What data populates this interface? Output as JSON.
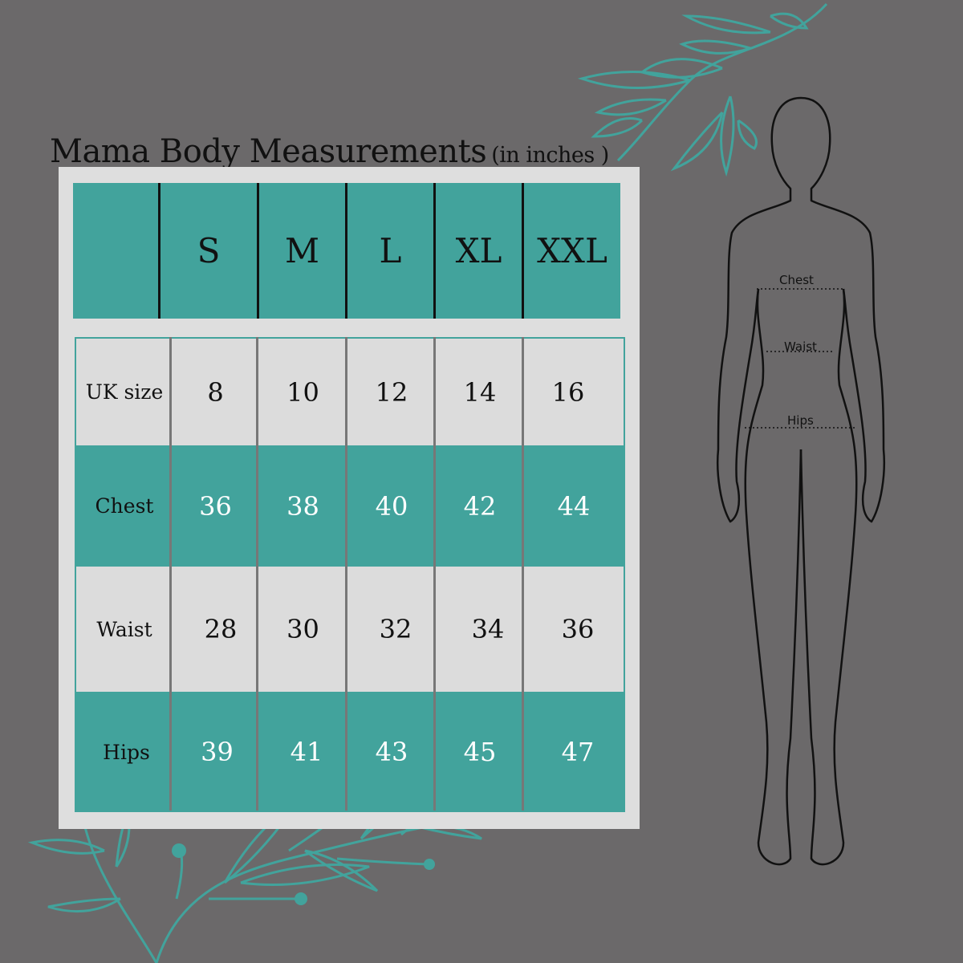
{
  "title": "Mama Body Measurements",
  "subtitle": "(in inches )",
  "sizes": [
    "S",
    "M",
    "L",
    "XL",
    "XXL"
  ],
  "rows": [
    {
      "label": "UK size",
      "values": [
        "8",
        "10",
        "12",
        "14",
        "16"
      ]
    },
    {
      "label": "Chest",
      "values": [
        "36",
        "38",
        "40",
        "42",
        "44"
      ]
    },
    {
      "label": "Waist",
      "values": [
        "28",
        "30",
        "32",
        "34",
        "36"
      ]
    },
    {
      "label": "Hips",
      "values": [
        "39",
        "41",
        "43",
        "45",
        "47"
      ]
    }
  ],
  "figure_labels": {
    "chest": "Chest",
    "waist": "Waist",
    "hips": "Hips"
  },
  "colors": {
    "background": "#6b696a",
    "teal": "#42a39c",
    "panel": "#dedede"
  }
}
